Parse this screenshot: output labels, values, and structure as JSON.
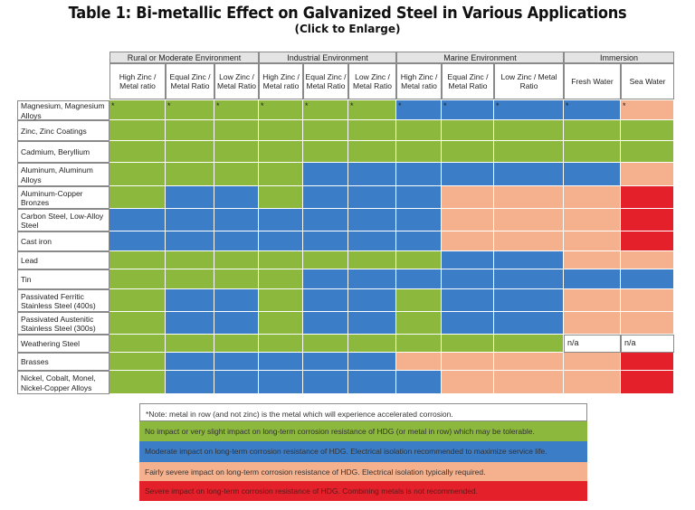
{
  "title": "Table 1: Bi-metallic Effect on Galvanized Steel in Various Applications",
  "subtitle": "(Click to Enlarge)",
  "colors": {
    "G": "#8cb83d",
    "B": "#3c7dc7",
    "P": "#f5b08d",
    "R": "#e4212b",
    "W": "#ffffff",
    "header_bg": "#e4e4e4"
  },
  "groups": [
    {
      "label": "Rural or Moderate Environment",
      "span": 3
    },
    {
      "label": "Industrial Environment",
      "span": 3
    },
    {
      "label": "Marine Environment",
      "span": 3
    },
    {
      "label": "Immersion",
      "span": 2
    }
  ],
  "columns": [
    "High Zinc / Metal ratio",
    "Equal Zinc / Metal Ratio",
    "Low Zinc / Metal Ratio",
    "High Zinc / Metal ratio",
    "Equal Zinc / Metal Ratio",
    "Low Zinc / Metal Ratio",
    "High Zinc / Metal ratio",
    "Equal Zinc / Metal Ratio",
    "Low Zinc / Metal Ratio",
    "Fresh Water",
    "Sea Water"
  ],
  "rows": [
    {
      "label": "Magnesium, Magnesium Alloys",
      "cells": [
        "G",
        "G",
        "G",
        "G",
        "G",
        "G",
        "B",
        "B",
        "B",
        "B",
        "P"
      ],
      "marks": [
        "*",
        "*",
        "*",
        "*",
        "*",
        "*",
        "*",
        "*",
        "*",
        "*",
        "*"
      ]
    },
    {
      "label": "Zinc, Zinc Coatings",
      "cells": [
        "G",
        "G",
        "G",
        "G",
        "G",
        "G",
        "G",
        "G",
        "G",
        "G",
        "G"
      ]
    },
    {
      "label": "Cadmium, Beryllium",
      "cells": [
        "G",
        "G",
        "G",
        "G",
        "G",
        "G",
        "G",
        "G",
        "G",
        "G",
        "G"
      ]
    },
    {
      "label": "Aluminum, Aluminum Alloys",
      "cells": [
        "G",
        "G",
        "G",
        "G",
        "B",
        "B",
        "B",
        "B",
        "B",
        "B",
        "P"
      ]
    },
    {
      "label": "Aluminum-Copper Bronzes",
      "cells": [
        "G",
        "B",
        "B",
        "G",
        "B",
        "B",
        "B",
        "P",
        "P",
        "P",
        "R"
      ]
    },
    {
      "label": "Carbon Steel, Low-Alloy Steel",
      "cells": [
        "B",
        "B",
        "B",
        "B",
        "B",
        "B",
        "B",
        "P",
        "P",
        "P",
        "R"
      ]
    },
    {
      "label": "Cast iron",
      "cells": [
        "B",
        "B",
        "B",
        "B",
        "B",
        "B",
        "B",
        "P",
        "P",
        "P",
        "R"
      ]
    },
    {
      "label": "Lead",
      "cells": [
        "G",
        "G",
        "G",
        "G",
        "G",
        "G",
        "G",
        "B",
        "B",
        "P",
        "P"
      ]
    },
    {
      "label": "Tin",
      "cells": [
        "G",
        "G",
        "G",
        "G",
        "B",
        "B",
        "B",
        "B",
        "B",
        "B",
        "B"
      ]
    },
    {
      "label": "Passivated Ferritic Stainless Steel (400s)",
      "cells": [
        "G",
        "B",
        "B",
        "G",
        "B",
        "B",
        "G",
        "B",
        "B",
        "P",
        "P"
      ]
    },
    {
      "label": "Passivated Austenitic Stainless Steel (300s)",
      "cells": [
        "G",
        "B",
        "B",
        "G",
        "B",
        "B",
        "G",
        "B",
        "B",
        "P",
        "P"
      ]
    },
    {
      "label": "Weathering Steel",
      "cells": [
        "G",
        "G",
        "G",
        "G",
        "G",
        "G",
        "G",
        "G",
        "G",
        "W",
        "W"
      ],
      "marks": [
        "",
        "",
        "",
        "",
        "",
        "",
        "",
        "",
        "",
        "n/a",
        "n/a"
      ]
    },
    {
      "label": "Brasses",
      "cells": [
        "G",
        "B",
        "B",
        "B",
        "B",
        "B",
        "P",
        "P",
        "P",
        "P",
        "R"
      ]
    },
    {
      "label": "Nickel, Cobalt, Monel, Nickel-Copper Alloys",
      "cells": [
        "G",
        "B",
        "B",
        "B",
        "B",
        "B",
        "B",
        "P",
        "P",
        "P",
        "R"
      ]
    }
  ],
  "legend": [
    {
      "text": "*Note:  metal in row (and not zinc) is the metal which will experience accelerated corrosion.",
      "color": "W"
    },
    {
      "text": "No impact or very slight impact on long-term corrosion resistance of HDG (or metal in row) which may be tolerable.",
      "color": "G"
    },
    {
      "text": "Moderate impact on long-term corrosion resistance of HDG. Electrical isolation recommended to maximize service life.",
      "color": "B"
    },
    {
      "text": "Fairly severe impact on long-term corrosion resistance of HDG. Electrical isolation typically required.",
      "color": "P"
    },
    {
      "text": "Severe impact on long-term corrosion resistance of HDG. Combining metals is not recommended.",
      "color": "R"
    }
  ]
}
